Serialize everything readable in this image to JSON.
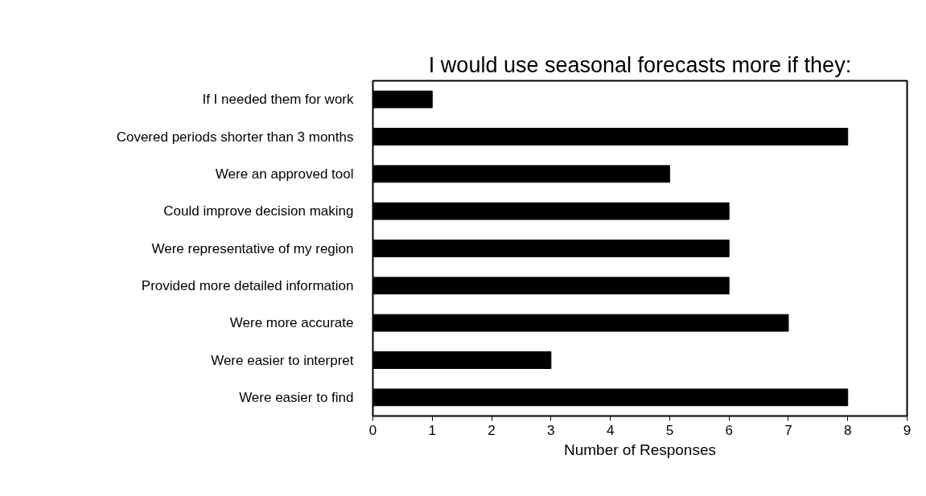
{
  "chart_data": {
    "type": "bar",
    "orientation": "horizontal",
    "title": "I would use seasonal forecasts more if they:",
    "xlabel": "Number of Responses",
    "categories": [
      "If I needed them for work",
      "Covered periods shorter than 3 months",
      "Were an approved tool",
      "Could improve decision making",
      "Were representative of my region",
      "Provided more detailed information",
      "Were more accurate",
      "Were easier to interpret",
      "Were easier to find"
    ],
    "values": [
      1,
      8,
      5,
      6,
      6,
      6,
      7,
      3,
      8
    ],
    "color": "#000000",
    "xlim": [
      0,
      9
    ],
    "xticks": [
      0,
      1,
      2,
      3,
      4,
      5,
      6,
      7,
      8,
      9
    ],
    "grid": false
  }
}
